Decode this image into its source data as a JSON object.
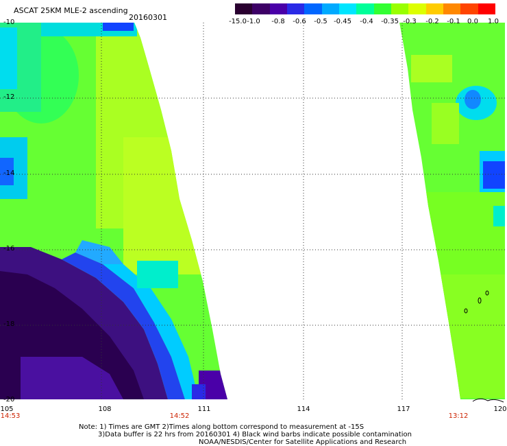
{
  "header": {
    "title": "ASCAT 25KM MLE-2 ascending",
    "date": "20160301"
  },
  "colorbar": {
    "colors": [
      "#2a0030",
      "#3d0066",
      "#4a00a8",
      "#2a2ae6",
      "#0066ff",
      "#00aaff",
      "#00e5ff",
      "#00ff99",
      "#33ff33",
      "#99ff00",
      "#ddff00",
      "#ffcc00",
      "#ff8800",
      "#ff4400",
      "#ff0000"
    ],
    "labels": [
      "-15.0",
      "-1.0",
      "-0.8",
      "-0.6",
      "-0.5",
      "-0.45",
      "-0.4",
      "-0.35",
      "-0.3",
      "-0.2",
      "-0.1",
      "0.0",
      "1.0"
    ]
  },
  "axes": {
    "lat_labels": [
      "-10",
      "-12",
      "-14",
      "-16",
      "-18",
      "-20"
    ],
    "lon_labels": [
      "105",
      "108",
      "111",
      "114",
      "117",
      "120"
    ]
  },
  "times": [
    "14:53",
    "14:52",
    "13:12"
  ],
  "notes": {
    "line1": "Note: 1) Times are GMT 2)Times along bottom correspond to measurement at -15S",
    "line2": "3)Data buffer is 22 hrs from 20160301 4) Black wind barbs indicate possible contamination",
    "line3": "NOAA/NESDIS/Center for Satellite Applications and Research"
  }
}
